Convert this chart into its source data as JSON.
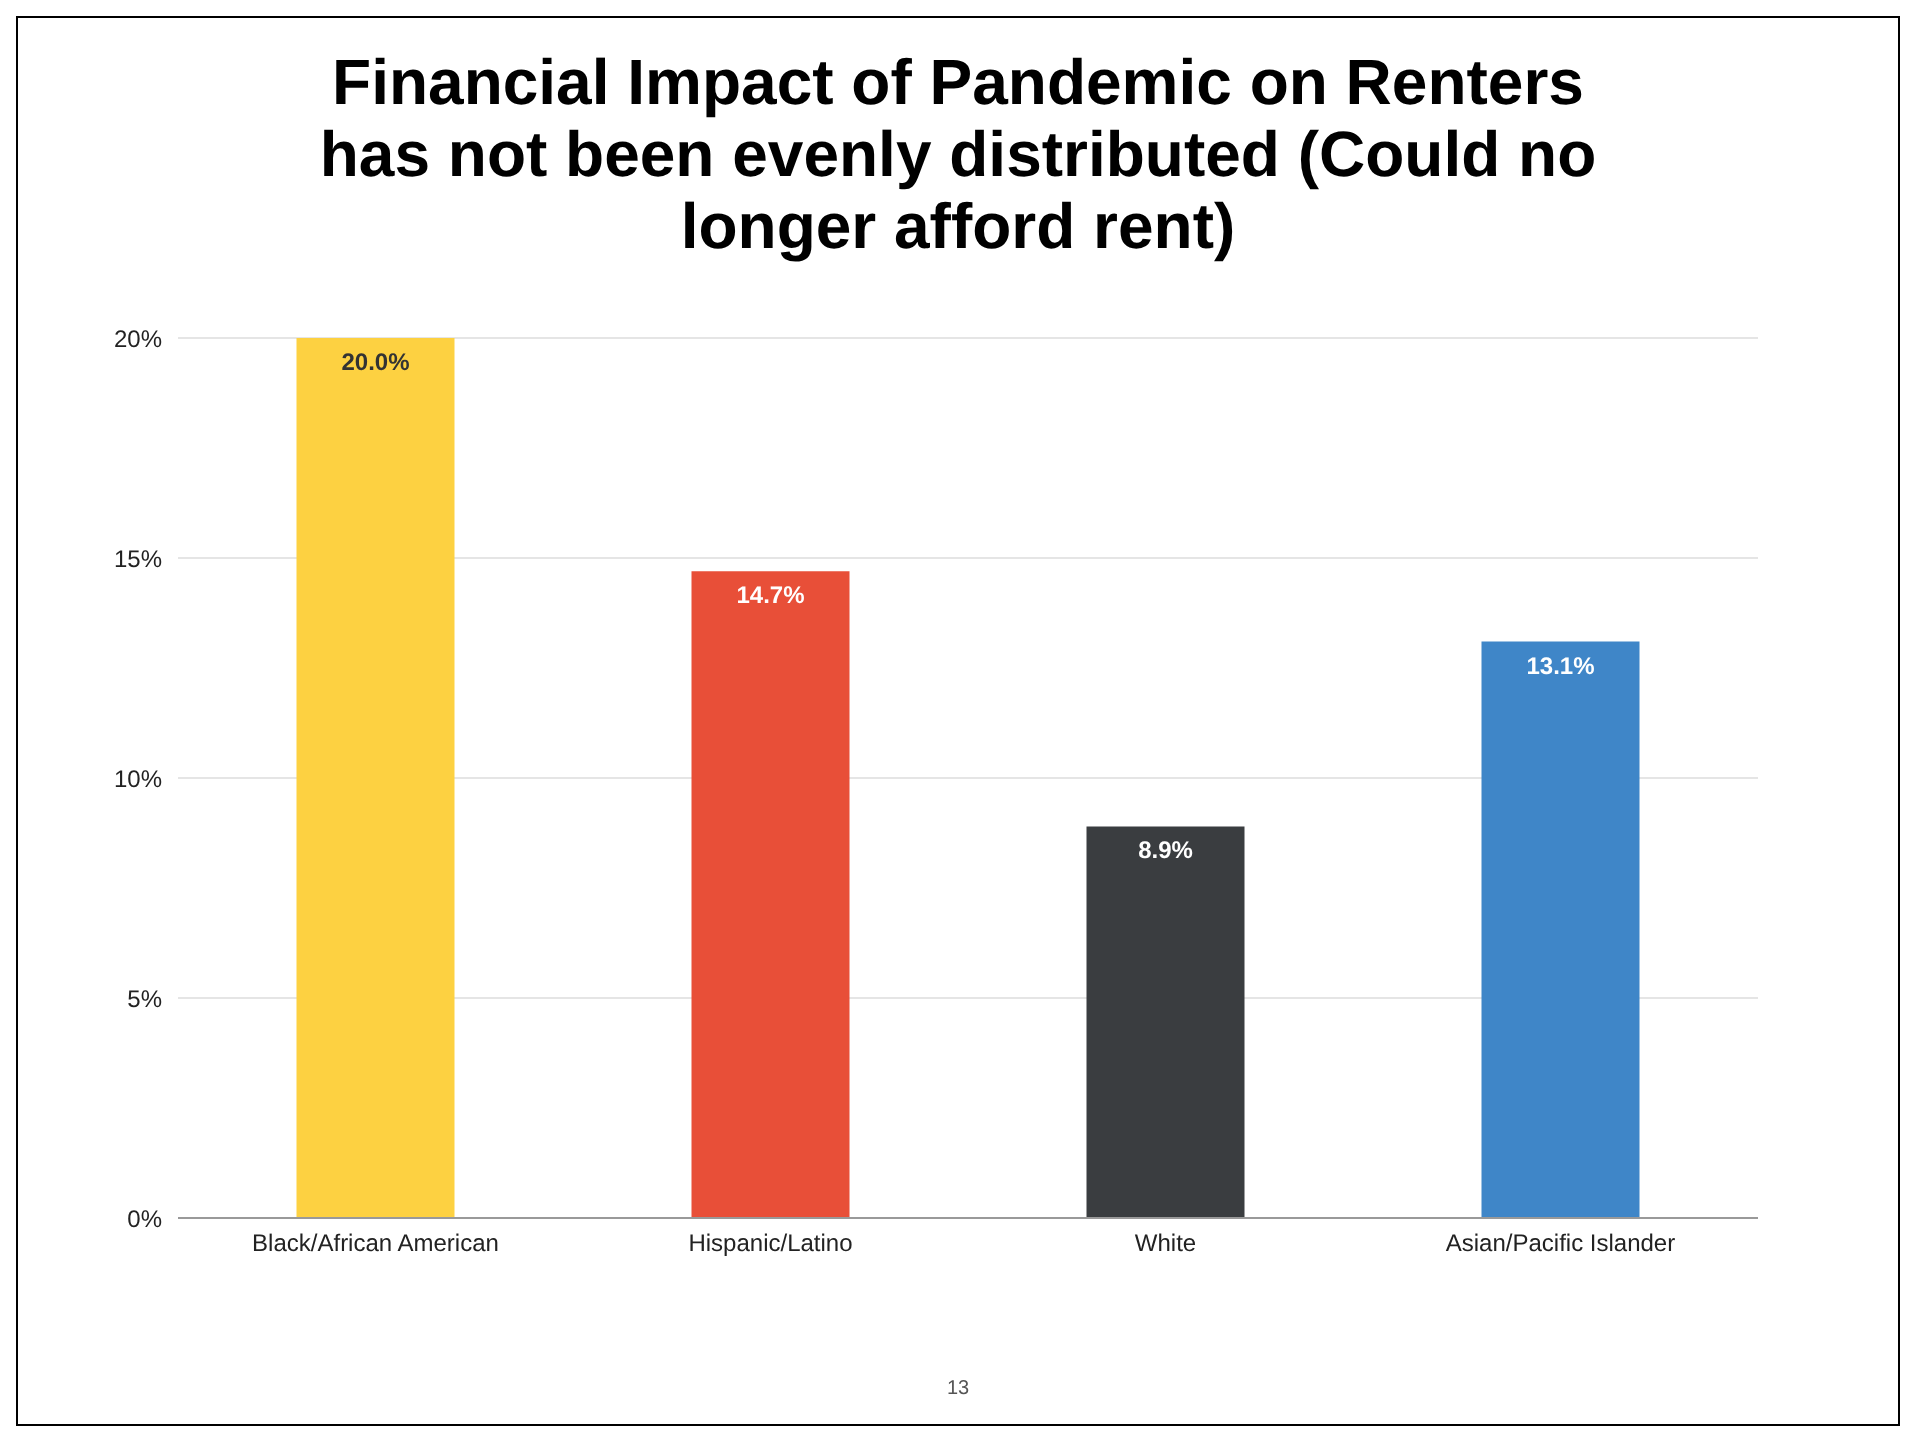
{
  "chart_data": {
    "type": "bar",
    "title": "Financial Impact of Pandemic on Renters has not been evenly distributed (Could no longer afford rent)",
    "categories": [
      "Black/African American",
      "Hispanic/Latino",
      "White",
      "Asian/Pacific Islander"
    ],
    "values": [
      20.0,
      14.7,
      8.9,
      13.1
    ],
    "value_labels": [
      "20.0%",
      "14.7%",
      "8.9%",
      "13.1%"
    ],
    "colors": [
      "#fdd141",
      "#e84f38",
      "#3a3d40",
      "#3f86c8"
    ],
    "ylim": [
      0,
      20
    ],
    "yticks": [
      {
        "value": 0,
        "label": "0%"
      },
      {
        "value": 5,
        "label": "5%"
      },
      {
        "value": 10,
        "label": "10%"
      },
      {
        "value": 15,
        "label": "15%"
      },
      {
        "value": 20,
        "label": "20%"
      }
    ],
    "grid": "y",
    "annotations": [
      "13"
    ]
  }
}
